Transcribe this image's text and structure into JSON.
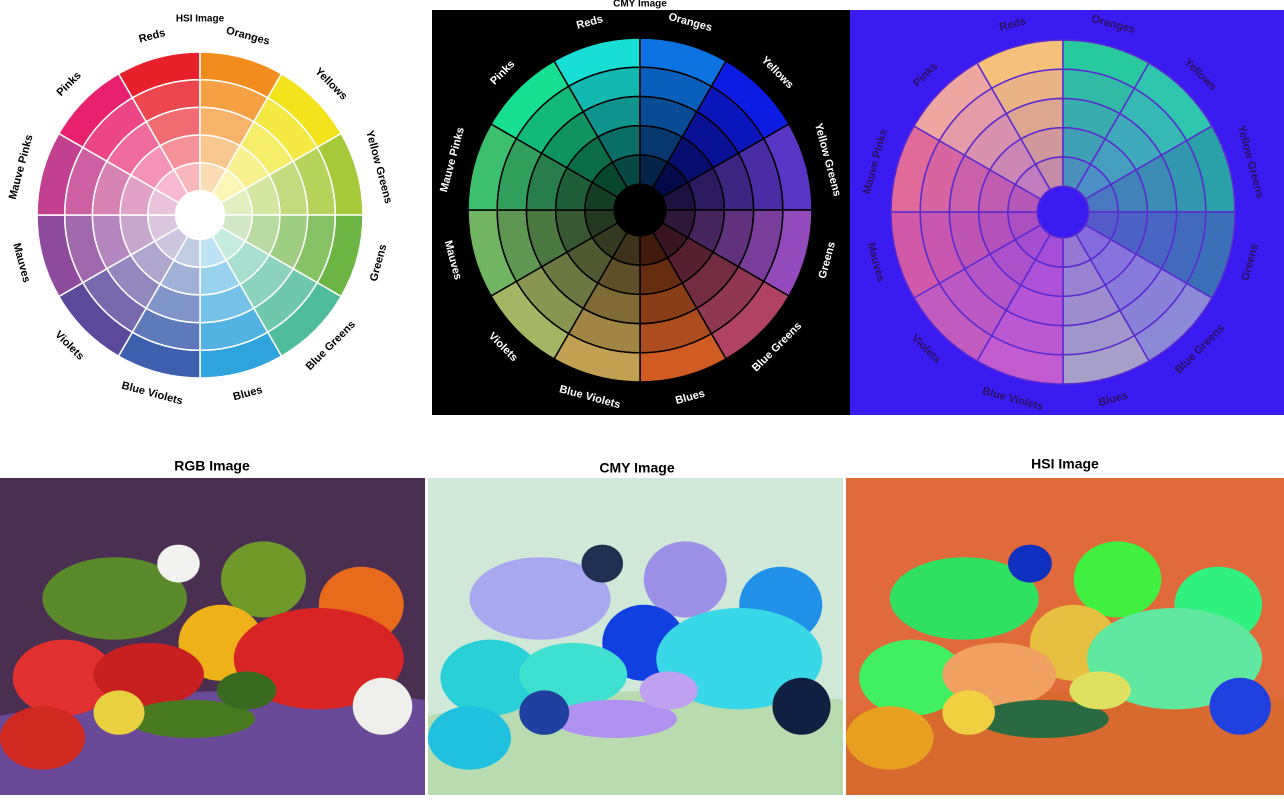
{
  "top": {
    "titles": [
      "HSI Image",
      "CMY Image"
    ],
    "wheel_labels": [
      "Reds",
      "Oranges",
      "Yellows",
      "Yellow Greens",
      "Greens",
      "Blue Greens",
      "Blues",
      "Blue Violets",
      "Violets",
      "Mauves",
      "Mauve Pinks",
      "Pinks"
    ]
  },
  "bottom": {
    "titles": [
      "RGB Image",
      "CMY Image",
      "HSI Image"
    ]
  }
}
